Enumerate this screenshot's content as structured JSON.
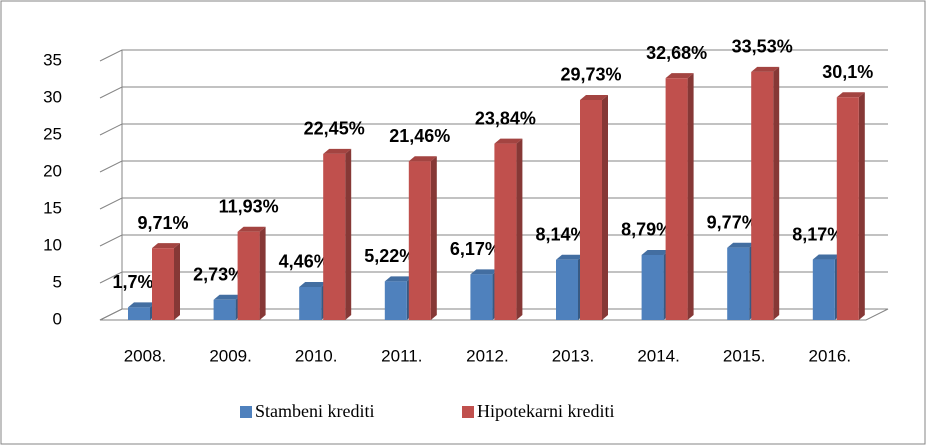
{
  "chart_data": {
    "type": "bar3d",
    "categories": [
      "2008.",
      "2009.",
      "2010.",
      "2011.",
      "2012.",
      "2013.",
      "2014.",
      "2015.",
      "2016."
    ],
    "series": [
      {
        "name": "Stambeni krediti",
        "color": "#4f81bd",
        "values": [
          1.7,
          2.73,
          4.46,
          5.22,
          6.17,
          8.14,
          8.79,
          9.77,
          8.17
        ],
        "value_labels": [
          "1,7%",
          "2,73%",
          "4,46%",
          "5,22%",
          "6,17%",
          "8,14%",
          "8,79%",
          "9,77%",
          "8,17%"
        ]
      },
      {
        "name": "Hipotekarni krediti",
        "color": "#c0504d",
        "values": [
          9.71,
          11.93,
          22.45,
          21.46,
          23.84,
          29.73,
          32.68,
          33.53,
          30.1
        ],
        "value_labels": [
          "9,71%",
          "11,93%",
          "22,45%",
          "21,46%",
          "23,84%",
          "29,73%",
          "32,68%",
          "33,53%",
          "30,1%"
        ]
      }
    ],
    "ylim": [
      0,
      35
    ],
    "yticks": [
      0,
      5,
      10,
      15,
      20,
      25,
      30,
      35
    ],
    "grid": true,
    "legend": "bottom"
  }
}
